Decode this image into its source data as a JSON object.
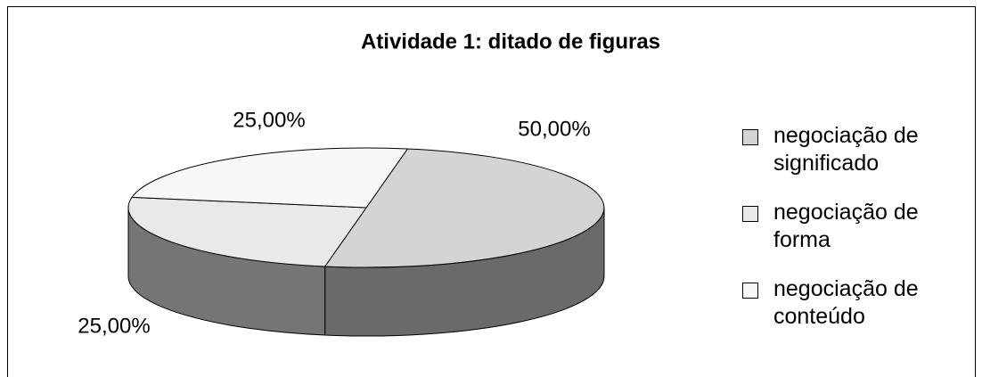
{
  "chart_data": {
    "type": "pie",
    "title": "Atividade 1: ditado de figuras",
    "categories": [
      "negociação de significado",
      "negociação de forma",
      "negociação de conteúdo"
    ],
    "values": [
      50,
      25,
      25
    ],
    "value_labels": [
      "50,00%",
      "25,00%",
      "25,00%"
    ],
    "colors": [
      "#d4d4d4",
      "#e9e9e9",
      "#f8f8f8"
    ],
    "legend": "right"
  }
}
